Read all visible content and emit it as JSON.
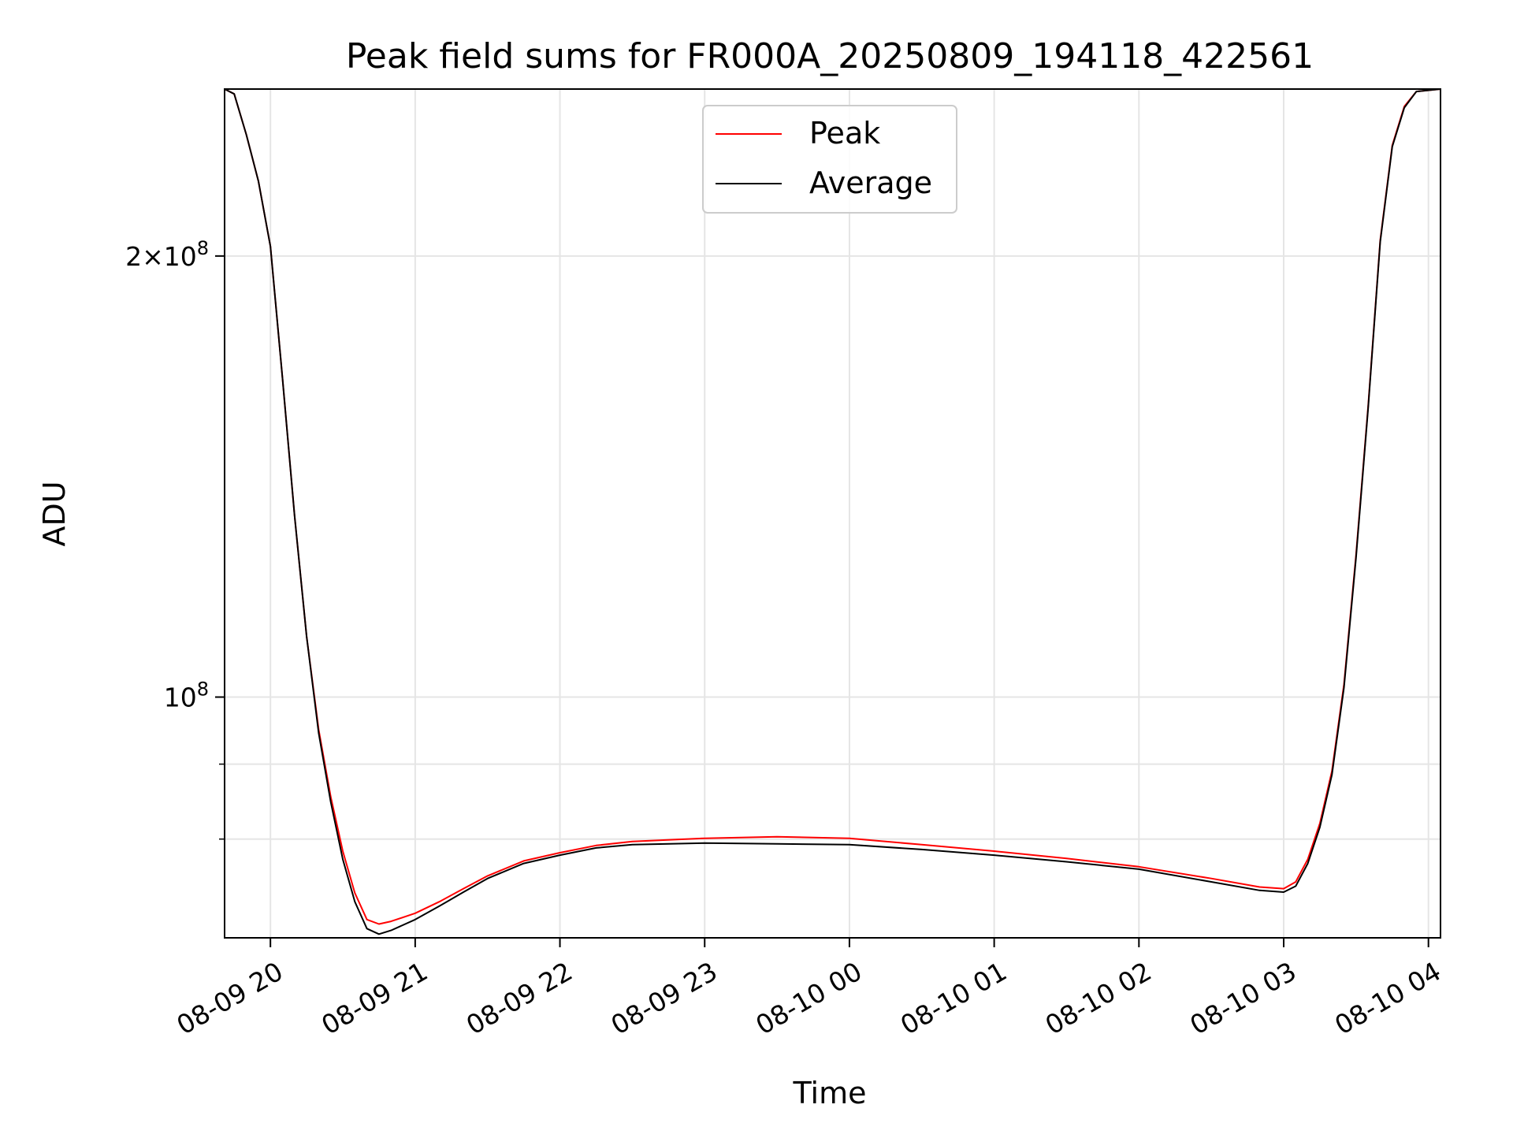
{
  "chart_data": {
    "type": "line",
    "title": "Peak field sums for FR000A_20250809_194118_422561",
    "xlabel": "Time",
    "ylabel": "ADU",
    "y_scale": "log",
    "grid": true,
    "legend_position": "top-center",
    "xlim": [
      "2025-08-09 19:41",
      "2025-08-10 04:05"
    ],
    "ylim": [
      68500000,
      260000000
    ],
    "x_ticks": [
      {
        "value": "2025-08-09 20:00",
        "label": "08-09 20"
      },
      {
        "value": "2025-08-09 21:00",
        "label": "08-09 21"
      },
      {
        "value": "2025-08-09 22:00",
        "label": "08-09 22"
      },
      {
        "value": "2025-08-09 23:00",
        "label": "08-09 23"
      },
      {
        "value": "2025-08-10 00:00",
        "label": "08-10 00"
      },
      {
        "value": "2025-08-10 01:00",
        "label": "08-10 01"
      },
      {
        "value": "2025-08-10 02:00",
        "label": "08-10 02"
      },
      {
        "value": "2025-08-10 03:00",
        "label": "08-10 03"
      },
      {
        "value": "2025-08-10 04:00",
        "label": "08-10 04"
      }
    ],
    "y_major_ticks": [
      {
        "value": 100000000,
        "mantissa": "",
        "exponent": "8"
      },
      {
        "value": 200000000,
        "mantissa": "2",
        "exponent": "8"
      }
    ],
    "y_minor_ticks": [
      80000000,
      90000000
    ],
    "series": [
      {
        "name": "Peak",
        "color": "#ff0000",
        "points": [
          [
            "2025-08-09 19:41",
            260000000
          ],
          [
            "2025-08-09 19:45",
            258000000
          ],
          [
            "2025-08-09 19:50",
            242000000
          ],
          [
            "2025-08-09 19:55",
            225000000
          ],
          [
            "2025-08-09 20:00",
            203000000
          ],
          [
            "2025-08-09 20:05",
            165000000
          ],
          [
            "2025-08-09 20:10",
            133000000
          ],
          [
            "2025-08-09 20:15",
            110000000
          ],
          [
            "2025-08-09 20:20",
            95000000
          ],
          [
            "2025-08-09 20:25",
            85500000
          ],
          [
            "2025-08-09 20:30",
            78500000
          ],
          [
            "2025-08-09 20:35",
            73500000
          ],
          [
            "2025-08-09 20:40",
            70500000
          ],
          [
            "2025-08-09 20:45",
            70000000
          ],
          [
            "2025-08-09 20:50",
            70300000
          ],
          [
            "2025-08-09 21:00",
            71200000
          ],
          [
            "2025-08-09 21:10",
            72500000
          ],
          [
            "2025-08-09 21:20",
            74000000
          ],
          [
            "2025-08-09 21:30",
            75500000
          ],
          [
            "2025-08-09 21:45",
            77300000
          ],
          [
            "2025-08-09 22:00",
            78300000
          ],
          [
            "2025-08-09 22:15",
            79200000
          ],
          [
            "2025-08-09 22:30",
            79700000
          ],
          [
            "2025-08-09 23:00",
            80100000
          ],
          [
            "2025-08-09 23:30",
            80300000
          ],
          [
            "2025-08-10 00:00",
            80100000
          ],
          [
            "2025-08-10 00:30",
            79300000
          ],
          [
            "2025-08-10 01:00",
            78500000
          ],
          [
            "2025-08-10 01:30",
            77600000
          ],
          [
            "2025-08-10 02:00",
            76600000
          ],
          [
            "2025-08-10 02:30",
            75200000
          ],
          [
            "2025-08-10 02:50",
            74200000
          ],
          [
            "2025-08-10 03:00",
            74000000
          ],
          [
            "2025-08-10 03:05",
            74800000
          ],
          [
            "2025-08-10 03:10",
            77500000
          ],
          [
            "2025-08-10 03:15",
            82000000
          ],
          [
            "2025-08-10 03:20",
            89000000
          ],
          [
            "2025-08-10 03:25",
            102000000
          ],
          [
            "2025-08-10 03:30",
            125000000
          ],
          [
            "2025-08-10 03:35",
            158000000
          ],
          [
            "2025-08-10 03:40",
            205000000
          ],
          [
            "2025-08-10 03:45",
            238000000
          ],
          [
            "2025-08-10 03:50",
            253000000
          ],
          [
            "2025-08-10 03:55",
            259000000
          ],
          [
            "2025-08-10 04:05",
            260000000
          ]
        ]
      },
      {
        "name": "Average",
        "color": "#000000",
        "points": [
          [
            "2025-08-09 19:41",
            260000000
          ],
          [
            "2025-08-09 19:45",
            258000000
          ],
          [
            "2025-08-09 19:50",
            242000000
          ],
          [
            "2025-08-09 19:55",
            225000000
          ],
          [
            "2025-08-09 20:00",
            203000000
          ],
          [
            "2025-08-09 20:05",
            165000000
          ],
          [
            "2025-08-09 20:10",
            133000000
          ],
          [
            "2025-08-09 20:15",
            110000000
          ],
          [
            "2025-08-09 20:20",
            94500000
          ],
          [
            "2025-08-09 20:25",
            84800000
          ],
          [
            "2025-08-09 20:30",
            77500000
          ],
          [
            "2025-08-09 20:35",
            72500000
          ],
          [
            "2025-08-09 20:40",
            69500000
          ],
          [
            "2025-08-09 20:45",
            68900000
          ],
          [
            "2025-08-09 20:50",
            69300000
          ],
          [
            "2025-08-09 21:00",
            70500000
          ],
          [
            "2025-08-09 21:10",
            72000000
          ],
          [
            "2025-08-09 21:20",
            73600000
          ],
          [
            "2025-08-09 21:30",
            75200000
          ],
          [
            "2025-08-09 21:45",
            77000000
          ],
          [
            "2025-08-09 22:00",
            78000000
          ],
          [
            "2025-08-09 22:15",
            78900000
          ],
          [
            "2025-08-09 22:30",
            79300000
          ],
          [
            "2025-08-09 23:00",
            79500000
          ],
          [
            "2025-08-09 23:30",
            79400000
          ],
          [
            "2025-08-10 00:00",
            79300000
          ],
          [
            "2025-08-10 00:30",
            78700000
          ],
          [
            "2025-08-10 01:00",
            78000000
          ],
          [
            "2025-08-10 01:30",
            77200000
          ],
          [
            "2025-08-10 02:00",
            76300000
          ],
          [
            "2025-08-10 02:30",
            74800000
          ],
          [
            "2025-08-10 02:50",
            73800000
          ],
          [
            "2025-08-10 03:00",
            73600000
          ],
          [
            "2025-08-10 03:05",
            74300000
          ],
          [
            "2025-08-10 03:10",
            77000000
          ],
          [
            "2025-08-10 03:15",
            81500000
          ],
          [
            "2025-08-10 03:20",
            88500000
          ],
          [
            "2025-08-10 03:25",
            101500000
          ],
          [
            "2025-08-10 03:30",
            124500000
          ],
          [
            "2025-08-10 03:35",
            157500000
          ],
          [
            "2025-08-10 03:40",
            204500000
          ],
          [
            "2025-08-10 03:45",
            237500000
          ],
          [
            "2025-08-10 03:50",
            252500000
          ],
          [
            "2025-08-10 03:55",
            259000000
          ],
          [
            "2025-08-10 04:05",
            260000000
          ]
        ]
      }
    ]
  }
}
